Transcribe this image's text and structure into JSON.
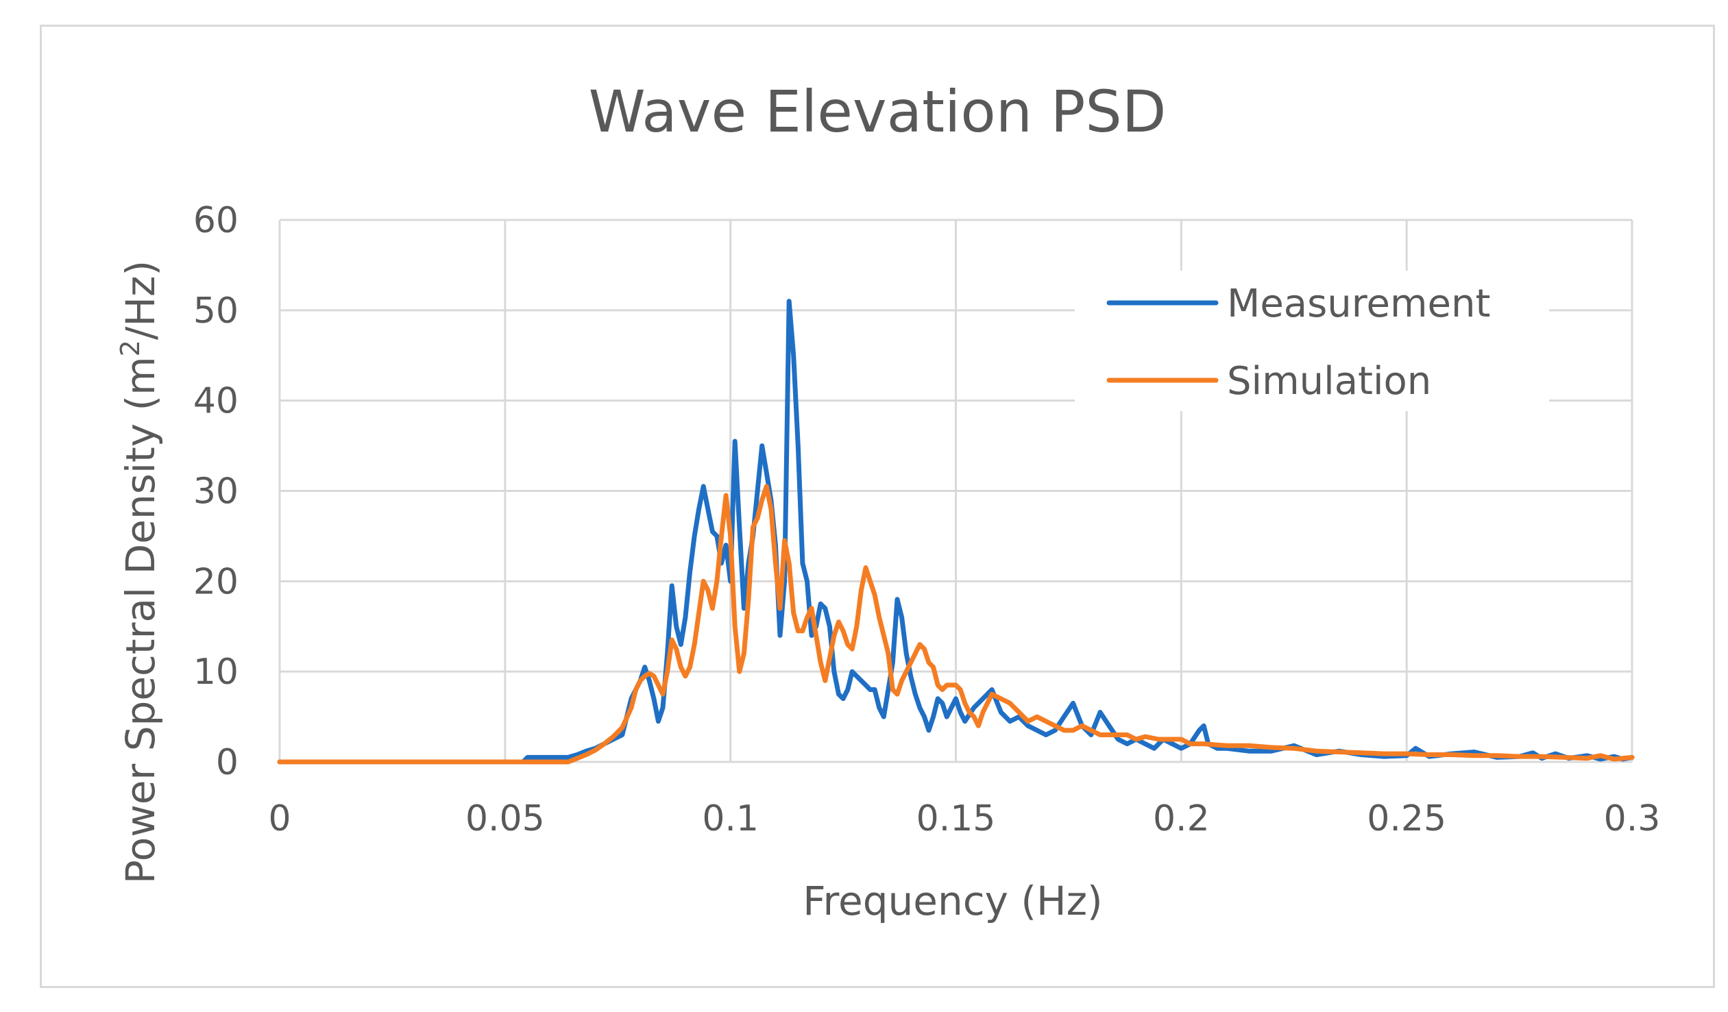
{
  "chart_data": {
    "type": "line",
    "title": "Wave Elevation PSD",
    "xlabel": "Frequency (Hz)",
    "ylabel_main": "Power Spectral Density (m",
    "ylabel_sup": "2",
    "ylabel_end": "/Hz)",
    "xlim": [
      0,
      0.3
    ],
    "ylim": [
      0,
      60
    ],
    "x_ticks": [
      0,
      0.05,
      0.1,
      0.15,
      0.2,
      0.25,
      0.3
    ],
    "x_tick_labels": [
      "0",
      "0.05",
      "0.1",
      "0.15",
      "0.2",
      "0.25",
      "0.3"
    ],
    "y_ticks": [
      0,
      10,
      20,
      30,
      40,
      50,
      60
    ],
    "y_tick_labels": [
      "0",
      "10",
      "20",
      "30",
      "40",
      "50",
      "60"
    ],
    "grid": true,
    "legend_position": "top-right",
    "colors": {
      "grid": "#d9d9d9",
      "text": "#595959",
      "frame": "#d9d9d9"
    },
    "series": [
      {
        "name": "Measurement",
        "color": "#1f6fc5",
        "points": [
          [
            0,
            0
          ],
          [
            0.054,
            0
          ],
          [
            0.055,
            0.5
          ],
          [
            0.064,
            0.5
          ],
          [
            0.066,
            0.8
          ],
          [
            0.068,
            1.2
          ],
          [
            0.07,
            1.5
          ],
          [
            0.072,
            2
          ],
          [
            0.074,
            2.5
          ],
          [
            0.076,
            3
          ],
          [
            0.077,
            5
          ],
          [
            0.078,
            7
          ],
          [
            0.079,
            8
          ],
          [
            0.08,
            9
          ],
          [
            0.081,
            10.5
          ],
          [
            0.082,
            9
          ],
          [
            0.083,
            7
          ],
          [
            0.084,
            4.5
          ],
          [
            0.085,
            6
          ],
          [
            0.086,
            12
          ],
          [
            0.087,
            19.5
          ],
          [
            0.088,
            15
          ],
          [
            0.089,
            13
          ],
          [
            0.09,
            16
          ],
          [
            0.091,
            21
          ],
          [
            0.092,
            25
          ],
          [
            0.093,
            28
          ],
          [
            0.094,
            30.5
          ],
          [
            0.095,
            28
          ],
          [
            0.096,
            25.5
          ],
          [
            0.097,
            25
          ],
          [
            0.098,
            22
          ],
          [
            0.099,
            24
          ],
          [
            0.1,
            20
          ],
          [
            0.101,
            35.5
          ],
          [
            0.102,
            26
          ],
          [
            0.103,
            17
          ],
          [
            0.104,
            22
          ],
          [
            0.105,
            25
          ],
          [
            0.106,
            30
          ],
          [
            0.107,
            35
          ],
          [
            0.108,
            32
          ],
          [
            0.109,
            29
          ],
          [
            0.11,
            24
          ],
          [
            0.111,
            14
          ],
          [
            0.112,
            20
          ],
          [
            0.113,
            51
          ],
          [
            0.114,
            45
          ],
          [
            0.115,
            35
          ],
          [
            0.116,
            22
          ],
          [
            0.117,
            20
          ],
          [
            0.118,
            14
          ],
          [
            0.119,
            15
          ],
          [
            0.12,
            17.5
          ],
          [
            0.121,
            17
          ],
          [
            0.122,
            15
          ],
          [
            0.123,
            10
          ],
          [
            0.124,
            7.5
          ],
          [
            0.125,
            7
          ],
          [
            0.126,
            8
          ],
          [
            0.127,
            10
          ],
          [
            0.128,
            9.5
          ],
          [
            0.129,
            9
          ],
          [
            0.13,
            8.5
          ],
          [
            0.131,
            8
          ],
          [
            0.132,
            8
          ],
          [
            0.133,
            6
          ],
          [
            0.134,
            5
          ],
          [
            0.135,
            8
          ],
          [
            0.136,
            11
          ],
          [
            0.137,
            18
          ],
          [
            0.138,
            16
          ],
          [
            0.139,
            12
          ],
          [
            0.14,
            9.5
          ],
          [
            0.141,
            7.5
          ],
          [
            0.142,
            6
          ],
          [
            0.143,
            5
          ],
          [
            0.144,
            3.5
          ],
          [
            0.145,
            5
          ],
          [
            0.146,
            7
          ],
          [
            0.147,
            6.5
          ],
          [
            0.148,
            5
          ],
          [
            0.149,
            6
          ],
          [
            0.15,
            7
          ],
          [
            0.151,
            5.5
          ],
          [
            0.152,
            4.5
          ],
          [
            0.154,
            6
          ],
          [
            0.156,
            7
          ],
          [
            0.158,
            8
          ],
          [
            0.16,
            5.5
          ],
          [
            0.162,
            4.5
          ],
          [
            0.164,
            5
          ],
          [
            0.166,
            4
          ],
          [
            0.168,
            3.5
          ],
          [
            0.17,
            3
          ],
          [
            0.172,
            3.5
          ],
          [
            0.174,
            5
          ],
          [
            0.176,
            6.5
          ],
          [
            0.178,
            4
          ],
          [
            0.18,
            3
          ],
          [
            0.182,
            5.5
          ],
          [
            0.184,
            4
          ],
          [
            0.186,
            2.5
          ],
          [
            0.188,
            2
          ],
          [
            0.19,
            2.5
          ],
          [
            0.192,
            2
          ],
          [
            0.194,
            1.5
          ],
          [
            0.196,
            2.5
          ],
          [
            0.198,
            2
          ],
          [
            0.2,
            1.5
          ],
          [
            0.202,
            2
          ],
          [
            0.204,
            3.5
          ],
          [
            0.205,
            4
          ],
          [
            0.206,
            2
          ],
          [
            0.208,
            1.5
          ],
          [
            0.21,
            1.5
          ],
          [
            0.215,
            1.2
          ],
          [
            0.22,
            1.2
          ],
          [
            0.225,
            1.8
          ],
          [
            0.23,
            0.8
          ],
          [
            0.235,
            1.2
          ],
          [
            0.24,
            0.8
          ],
          [
            0.245,
            0.6
          ],
          [
            0.25,
            0.7
          ],
          [
            0.252,
            1.5
          ],
          [
            0.255,
            0.6
          ],
          [
            0.26,
            0.9
          ],
          [
            0.265,
            1.1
          ],
          [
            0.27,
            0.5
          ],
          [
            0.275,
            0.6
          ],
          [
            0.278,
            1
          ],
          [
            0.28,
            0.4
          ],
          [
            0.283,
            0.9
          ],
          [
            0.286,
            0.4
          ],
          [
            0.29,
            0.7
          ],
          [
            0.293,
            0.3
          ],
          [
            0.296,
            0.6
          ],
          [
            0.298,
            0.3
          ],
          [
            0.3,
            0.5
          ]
        ]
      },
      {
        "name": "Simulation",
        "color": "#f47d23",
        "points": [
          [
            0,
            0
          ],
          [
            0.064,
            0
          ],
          [
            0.066,
            0.4
          ],
          [
            0.068,
            0.8
          ],
          [
            0.07,
            1.3
          ],
          [
            0.072,
            2
          ],
          [
            0.074,
            2.8
          ],
          [
            0.076,
            3.8
          ],
          [
            0.078,
            6
          ],
          [
            0.079,
            8
          ],
          [
            0.08,
            9
          ],
          [
            0.081,
            9.5
          ],
          [
            0.082,
            9.8
          ],
          [
            0.083,
            9.5
          ],
          [
            0.084,
            8.5
          ],
          [
            0.085,
            7.5
          ],
          [
            0.086,
            10
          ],
          [
            0.087,
            13.5
          ],
          [
            0.088,
            12.5
          ],
          [
            0.089,
            10.5
          ],
          [
            0.09,
            9.5
          ],
          [
            0.091,
            10.5
          ],
          [
            0.092,
            13
          ],
          [
            0.093,
            16.5
          ],
          [
            0.094,
            20
          ],
          [
            0.095,
            19
          ],
          [
            0.096,
            17
          ],
          [
            0.097,
            20
          ],
          [
            0.098,
            25
          ],
          [
            0.099,
            29.5
          ],
          [
            0.1,
            25
          ],
          [
            0.101,
            15
          ],
          [
            0.102,
            10
          ],
          [
            0.103,
            12
          ],
          [
            0.104,
            18
          ],
          [
            0.105,
            26
          ],
          [
            0.106,
            27
          ],
          [
            0.107,
            29
          ],
          [
            0.108,
            30.5
          ],
          [
            0.109,
            28
          ],
          [
            0.11,
            22
          ],
          [
            0.111,
            17
          ],
          [
            0.112,
            24.5
          ],
          [
            0.113,
            22
          ],
          [
            0.114,
            16.5
          ],
          [
            0.115,
            14.5
          ],
          [
            0.116,
            14.5
          ],
          [
            0.117,
            16
          ],
          [
            0.118,
            17
          ],
          [
            0.119,
            14
          ],
          [
            0.12,
            11
          ],
          [
            0.121,
            9
          ],
          [
            0.122,
            11.5
          ],
          [
            0.123,
            14
          ],
          [
            0.124,
            15.5
          ],
          [
            0.125,
            14.5
          ],
          [
            0.126,
            13
          ],
          [
            0.127,
            12.5
          ],
          [
            0.128,
            15
          ],
          [
            0.129,
            19
          ],
          [
            0.13,
            21.5
          ],
          [
            0.131,
            20
          ],
          [
            0.132,
            18.5
          ],
          [
            0.133,
            16
          ],
          [
            0.134,
            14
          ],
          [
            0.135,
            12
          ],
          [
            0.136,
            8
          ],
          [
            0.137,
            7.5
          ],
          [
            0.138,
            9
          ],
          [
            0.139,
            10
          ],
          [
            0.14,
            11
          ],
          [
            0.141,
            12
          ],
          [
            0.142,
            13
          ],
          [
            0.143,
            12.5
          ],
          [
            0.144,
            11
          ],
          [
            0.145,
            10.5
          ],
          [
            0.146,
            8.5
          ],
          [
            0.147,
            8
          ],
          [
            0.148,
            8.5
          ],
          [
            0.15,
            8.5
          ],
          [
            0.151,
            8
          ],
          [
            0.152,
            6.5
          ],
          [
            0.153,
            5.5
          ],
          [
            0.154,
            5
          ],
          [
            0.155,
            4
          ],
          [
            0.156,
            5.5
          ],
          [
            0.158,
            7.5
          ],
          [
            0.16,
            7
          ],
          [
            0.162,
            6.5
          ],
          [
            0.164,
            5.5
          ],
          [
            0.166,
            4.5
          ],
          [
            0.168,
            5
          ],
          [
            0.17,
            4.5
          ],
          [
            0.172,
            4
          ],
          [
            0.174,
            3.5
          ],
          [
            0.176,
            3.5
          ],
          [
            0.178,
            4
          ],
          [
            0.18,
            3.5
          ],
          [
            0.182,
            3
          ],
          [
            0.185,
            3
          ],
          [
            0.188,
            3
          ],
          [
            0.19,
            2.5
          ],
          [
            0.192,
            2.8
          ],
          [
            0.195,
            2.5
          ],
          [
            0.2,
            2.5
          ],
          [
            0.202,
            2
          ],
          [
            0.205,
            2
          ],
          [
            0.21,
            1.8
          ],
          [
            0.215,
            1.8
          ],
          [
            0.22,
            1.6
          ],
          [
            0.225,
            1.5
          ],
          [
            0.23,
            1.2
          ],
          [
            0.235,
            1.1
          ],
          [
            0.24,
            1
          ],
          [
            0.245,
            0.9
          ],
          [
            0.25,
            0.9
          ],
          [
            0.255,
            0.8
          ],
          [
            0.26,
            0.8
          ],
          [
            0.265,
            0.7
          ],
          [
            0.27,
            0.7
          ],
          [
            0.275,
            0.6
          ],
          [
            0.28,
            0.6
          ],
          [
            0.285,
            0.5
          ],
          [
            0.29,
            0.4
          ],
          [
            0.293,
            0.7
          ],
          [
            0.296,
            0.3
          ],
          [
            0.3,
            0.5
          ]
        ]
      }
    ]
  }
}
